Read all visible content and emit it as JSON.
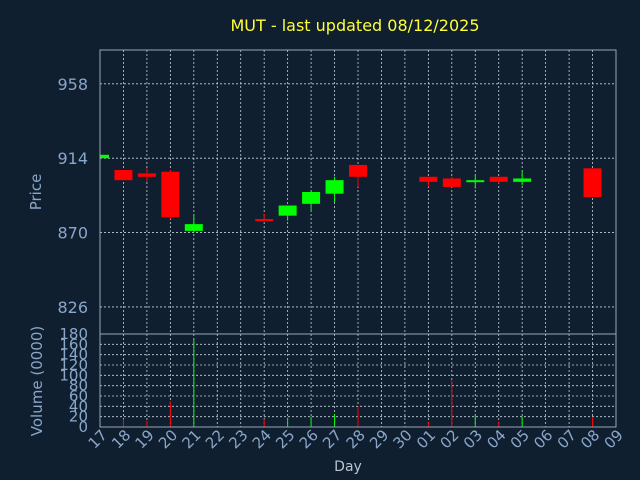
{
  "chart_data": {
    "type": "candlestick",
    "title": "MUT - last updated 08/12/2025",
    "price_axis": {
      "label": "Price",
      "ticks": [
        826,
        870,
        914,
        958
      ],
      "range": [
        810,
        978
      ]
    },
    "volume_axis": {
      "label": "Volume (0000)",
      "ticks": [
        0,
        20,
        40,
        60,
        80,
        100,
        120,
        140,
        160,
        180
      ],
      "range": [
        0,
        180
      ]
    },
    "xlabel": "Day",
    "x_ticks": [
      "17",
      "18",
      "19",
      "20",
      "21",
      "22",
      "23",
      "24",
      "25",
      "26",
      "27",
      "28",
      "29",
      "30",
      "01",
      "02",
      "03",
      "04",
      "05",
      "06",
      "07",
      "08",
      "09"
    ],
    "grid": true,
    "colors": {
      "up": "#00ff00",
      "down": "#ff0000"
    },
    "candles": [
      {
        "day": "17",
        "open": 914,
        "high": 916,
        "low": 913,
        "close": 916,
        "volume": 2
      },
      {
        "day": "18",
        "open": 907,
        "high": 907,
        "low": 901,
        "close": 901,
        "volume": 15
      },
      {
        "day": "19",
        "open": 905,
        "high": 908,
        "low": 900,
        "close": 903,
        "volume": 12
      },
      {
        "day": "20",
        "open": 906,
        "high": 907,
        "low": 878,
        "close": 879,
        "volume": 50
      },
      {
        "day": "21",
        "open": 871,
        "high": 881,
        "low": 870,
        "close": 875,
        "volume": 170
      },
      {
        "day": "24",
        "open": 878,
        "high": 881,
        "low": 877,
        "close": 877,
        "volume": 15
      },
      {
        "day": "25",
        "open": 880,
        "high": 886,
        "low": 877,
        "close": 886,
        "volume": 18
      },
      {
        "day": "26",
        "open": 887,
        "high": 894,
        "low": 883,
        "close": 894,
        "volume": 20
      },
      {
        "day": "27",
        "open": 893,
        "high": 903,
        "low": 888,
        "close": 901,
        "volume": 25
      },
      {
        "day": "28",
        "open": 910,
        "high": 910,
        "low": 897,
        "close": 903,
        "volume": 40
      },
      {
        "day": "01",
        "open": 903,
        "high": 903,
        "low": 897,
        "close": 900,
        "volume": 10
      },
      {
        "day": "02",
        "open": 902,
        "high": 903,
        "low": 897,
        "close": 897,
        "volume": 90
      },
      {
        "day": "03",
        "open": 900,
        "high": 904,
        "low": 896,
        "close": 901,
        "volume": 25
      },
      {
        "day": "04",
        "open": 903,
        "high": 903,
        "low": 899,
        "close": 900,
        "volume": 10
      },
      {
        "day": "05",
        "open": 900,
        "high": 906,
        "low": 898,
        "close": 902,
        "volume": 20
      },
      {
        "day": "08",
        "open": 908,
        "high": 908,
        "low": 891,
        "close": 891,
        "volume": 18
      }
    ]
  }
}
